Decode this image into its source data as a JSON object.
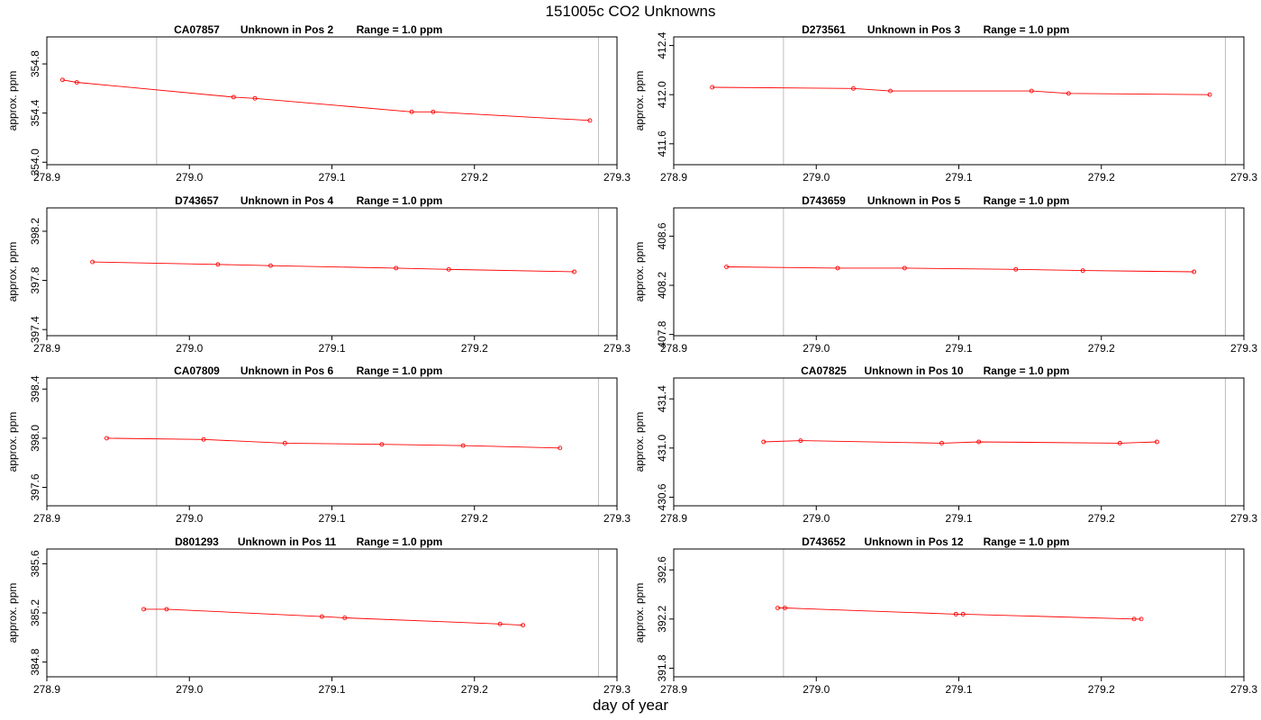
{
  "title": "151005c  CO2 Unknowns",
  "xlabel": "day of year",
  "colors": {
    "series": "#ff0000",
    "vline": "#bebebe",
    "axis": "#000000"
  },
  "chart_data": [
    {
      "type": "line",
      "id": "CA07857",
      "subtitle": "Unknown in Pos 2",
      "range_text": "Range = 1.0 ppm",
      "ylabel": "approx. ppm",
      "xlim": [
        278.9,
        279.3
      ],
      "ylim": [
        353.98,
        355.02
      ],
      "yticks": [
        354.0,
        354.4,
        354.8
      ],
      "xticks": [
        278.9,
        279.0,
        279.1,
        279.2,
        279.3
      ],
      "vlines": [
        278.977,
        279.287
      ],
      "x": [
        278.911,
        278.921,
        279.031,
        279.046,
        279.156,
        279.171,
        279.281
      ],
      "y": [
        354.67,
        354.65,
        354.53,
        354.52,
        354.41,
        354.41,
        354.34
      ]
    },
    {
      "type": "line",
      "id": "D273561",
      "subtitle": "Unknown in Pos 3",
      "range_text": "Range = 1.0 ppm",
      "ylabel": "approx. ppm",
      "xlim": [
        278.9,
        279.3
      ],
      "ylim": [
        411.43,
        412.47
      ],
      "yticks": [
        411.6,
        412.0,
        412.4
      ],
      "xticks": [
        278.9,
        279.0,
        279.1,
        279.2,
        279.3
      ],
      "vlines": [
        278.977,
        279.287
      ],
      "x": [
        278.927,
        279.026,
        279.052,
        279.151,
        279.177,
        279.276
      ],
      "y": [
        412.06,
        412.05,
        412.03,
        412.03,
        412.01,
        412.0
      ]
    },
    {
      "type": "line",
      "id": "D743657",
      "subtitle": "Unknown in Pos 4",
      "range_text": "Range = 1.0 ppm",
      "ylabel": "approx. ppm",
      "xlim": [
        278.9,
        279.3
      ],
      "ylim": [
        397.35,
        398.39
      ],
      "yticks": [
        397.4,
        397.8,
        398.2
      ],
      "xticks": [
        278.9,
        279.0,
        279.1,
        279.2,
        279.3
      ],
      "vlines": [
        278.977,
        279.287
      ],
      "x": [
        278.932,
        279.02,
        279.057,
        279.145,
        279.182,
        279.27
      ],
      "y": [
        397.95,
        397.93,
        397.92,
        397.9,
        397.89,
        397.87
      ]
    },
    {
      "type": "line",
      "id": "D743659",
      "subtitle": "Unknown in Pos 5",
      "range_text": "Range = 1.0 ppm",
      "ylabel": "approx. ppm",
      "xlim": [
        278.9,
        279.3
      ],
      "ylim": [
        407.79,
        408.83
      ],
      "yticks": [
        407.8,
        408.2,
        408.6
      ],
      "xticks": [
        278.9,
        279.0,
        279.1,
        279.2,
        279.3
      ],
      "vlines": [
        278.977,
        279.287
      ],
      "x": [
        278.937,
        279.015,
        279.062,
        279.14,
        279.187,
        279.265
      ],
      "y": [
        408.35,
        408.34,
        408.34,
        408.33,
        408.32,
        408.31
      ]
    },
    {
      "type": "line",
      "id": "CA07809",
      "subtitle": "Unknown in Pos 6",
      "range_text": "Range = 1.0 ppm",
      "ylabel": "approx. ppm",
      "xlim": [
        278.9,
        279.3
      ],
      "ylim": [
        397.45,
        398.49
      ],
      "yticks": [
        397.6,
        398.0,
        398.4
      ],
      "xticks": [
        278.9,
        279.0,
        279.1,
        279.2,
        279.3
      ],
      "vlines": [
        278.977,
        279.287
      ],
      "x": [
        278.942,
        279.01,
        279.067,
        279.135,
        279.192,
        279.26
      ],
      "y": [
        398.0,
        397.99,
        397.96,
        397.95,
        397.94,
        397.92
      ]
    },
    {
      "type": "line",
      "id": "CA07825",
      "subtitle": "Unknown in Pos 10",
      "range_text": "Range = 1.0 ppm",
      "ylabel": "approx. ppm",
      "xlim": [
        278.9,
        279.3
      ],
      "ylim": [
        430.53,
        431.57
      ],
      "yticks": [
        430.6,
        431.0,
        431.4
      ],
      "xticks": [
        278.9,
        279.0,
        279.1,
        279.2,
        279.3
      ],
      "vlines": [
        278.977,
        279.287
      ],
      "x": [
        278.963,
        278.989,
        279.088,
        279.114,
        279.213,
        279.239
      ],
      "y": [
        431.05,
        431.06,
        431.04,
        431.05,
        431.04,
        431.05
      ]
    },
    {
      "type": "line",
      "id": "D801293",
      "subtitle": "Unknown in Pos 11",
      "range_text": "Range = 1.0 ppm",
      "ylabel": "approx. ppm",
      "xlim": [
        278.9,
        279.3
      ],
      "ylim": [
        384.68,
        385.72
      ],
      "yticks": [
        384.8,
        385.2,
        385.6
      ],
      "xticks": [
        278.9,
        279.0,
        279.1,
        279.2,
        279.3
      ],
      "vlines": [
        278.977,
        279.287
      ],
      "x": [
        278.968,
        278.984,
        279.093,
        279.109,
        279.218,
        279.234
      ],
      "y": [
        385.23,
        385.23,
        385.17,
        385.16,
        385.11,
        385.1
      ]
    },
    {
      "type": "line",
      "id": "D743652",
      "subtitle": "Unknown in Pos 12",
      "range_text": "Range = 1.0 ppm",
      "ylabel": "approx. ppm",
      "xlim": [
        278.9,
        279.3
      ],
      "ylim": [
        391.73,
        392.77
      ],
      "yticks": [
        391.8,
        392.2,
        392.6
      ],
      "xticks": [
        278.9,
        279.0,
        279.1,
        279.2,
        279.3
      ],
      "vlines": [
        278.977,
        279.287
      ],
      "x": [
        278.973,
        278.978,
        279.098,
        279.103,
        279.223,
        279.228
      ],
      "y": [
        392.29,
        392.29,
        392.24,
        392.24,
        392.2,
        392.2
      ]
    }
  ]
}
